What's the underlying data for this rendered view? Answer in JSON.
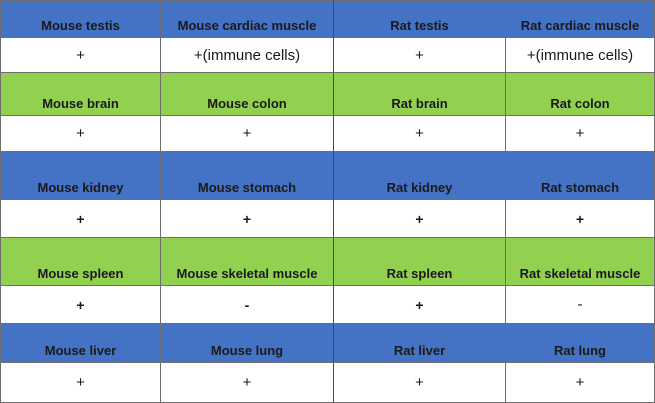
{
  "colors": {
    "blue_header": "#4472c4",
    "green_header": "#92d050",
    "value_bg": "#ffffff"
  },
  "rows": [
    {
      "header_color": "blue",
      "tissues": [
        "Mouse testis",
        "Mouse cardiac muscle",
        "Rat testis",
        "Rat cardiac muscle"
      ],
      "values": [
        "+",
        "+(immune cells)",
        "+",
        "+(immune cells)"
      ]
    },
    {
      "header_color": "green",
      "tissues": [
        "Mouse brain",
        "Mouse colon",
        "Rat brain",
        "Rat colon"
      ],
      "values": [
        "+",
        "+",
        "+",
        "+"
      ]
    },
    {
      "header_color": "blue",
      "tissues": [
        "Mouse kidney",
        "Mouse stomach",
        "Rat kidney",
        "Rat stomach"
      ],
      "values": [
        "+",
        "+",
        "+",
        "+"
      ]
    },
    {
      "header_color": "green",
      "tissues": [
        "Mouse spleen",
        "Mouse skeletal muscle",
        "Rat spleen",
        "Rat skeletal muscle"
      ],
      "values": [
        "+",
        "-",
        "+",
        "-"
      ]
    },
    {
      "header_color": "blue",
      "tissues": [
        "Mouse liver",
        "Mouse lung",
        "Rat liver",
        "Rat lung"
      ],
      "values": [
        "+",
        "+",
        "+",
        "+"
      ]
    }
  ]
}
